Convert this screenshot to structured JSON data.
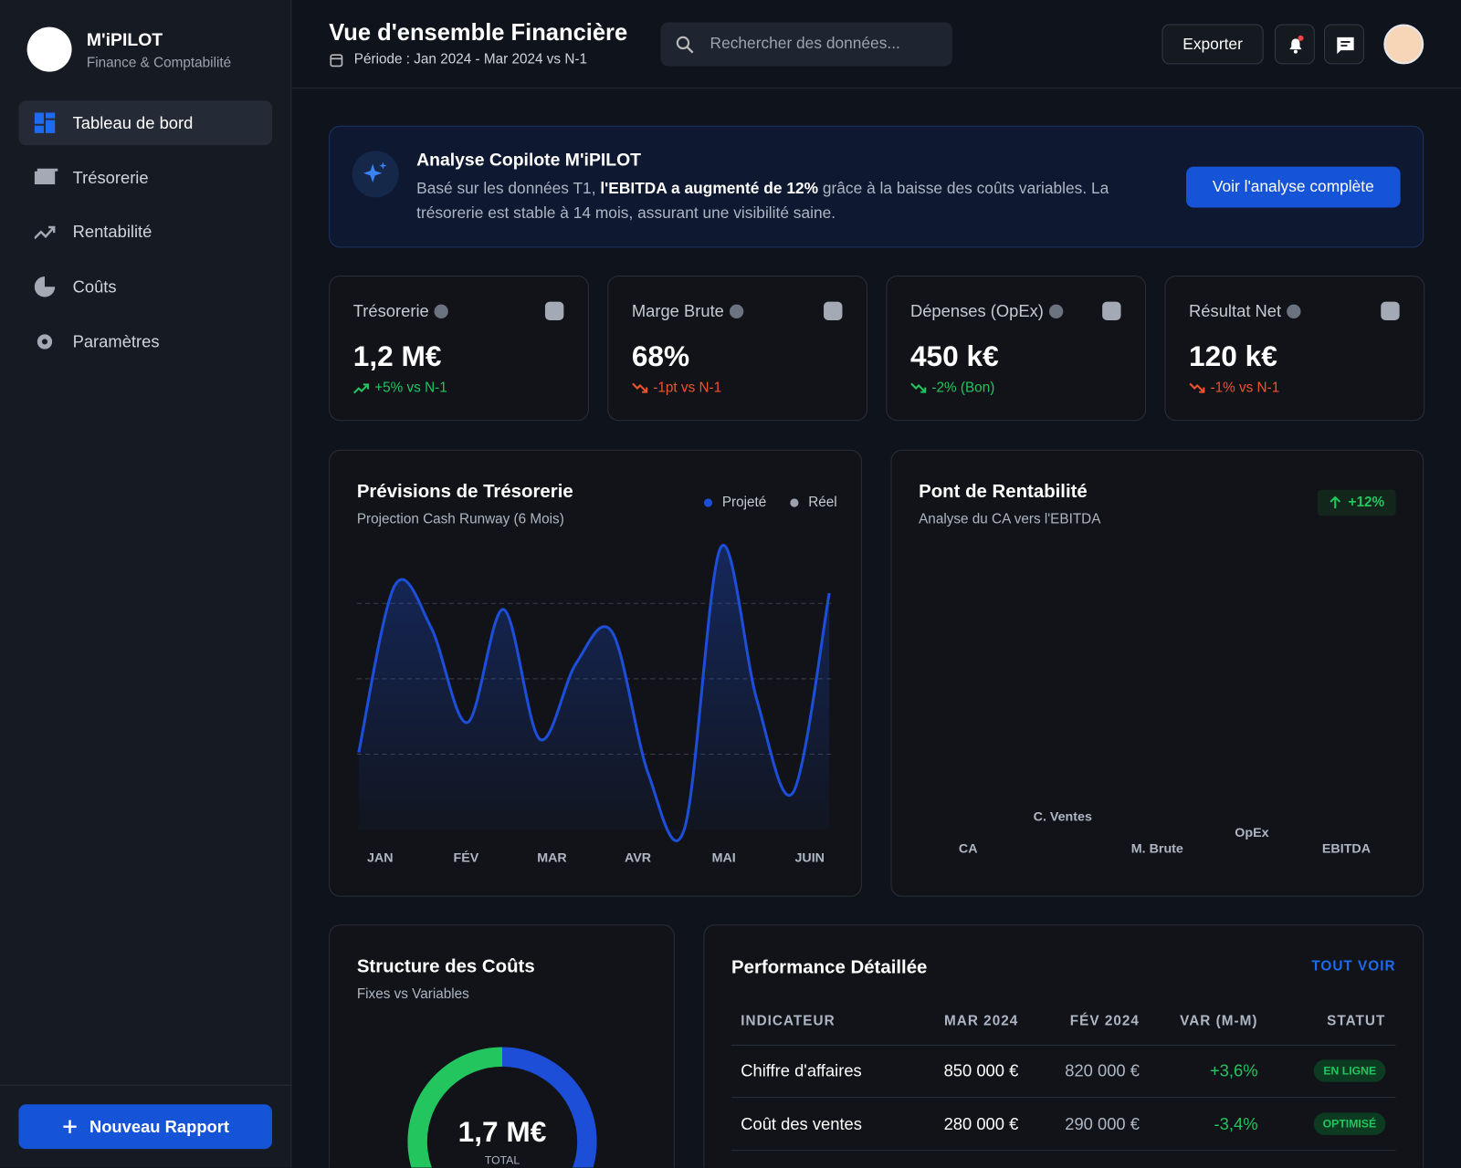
{
  "sidebar": {
    "brand": "M'iPILOT",
    "tagline": "Finance & Comptabilité",
    "nav": [
      "Tableau de bord",
      "Trésorerie",
      "Rentabilité",
      "Coûts",
      "Paramètres"
    ],
    "cta": "Nouveau Rapport"
  },
  "header": {
    "title": "Vue d'ensemble Financière",
    "period": "Période : Jan 2024 - Mar 2024 vs N-1",
    "search": "Rechercher des données...",
    "export": "Exporter"
  },
  "copilot": {
    "title": "Analyse Copilote M'iPILOT",
    "text_before": "Basé sur les données T1, ",
    "highlight": "l'EBITDA a augmenté de 12%",
    "text_after": " grâce à la baisse des coûts variables. La trésorerie est stable à 14 mois, assurant une visibilité saine.",
    "button": "Voir l'analyse complète"
  },
  "kpis": [
    {
      "label": "Trésorerie",
      "value": "1,2 M€",
      "delta": "+5% vs N-1",
      "trend": "up",
      "color": "#22c55e"
    },
    {
      "label": "Marge Brute",
      "value": "68%",
      "delta": "-1pt vs N-1",
      "trend": "down",
      "color": "#f0532d"
    },
    {
      "label": "Dépenses (OpEx)",
      "value": "450 k€",
      "delta": "-2% (Bon)",
      "trend": "down",
      "color": "#22c55e"
    },
    {
      "label": "Résultat Net",
      "value": "120 k€",
      "delta": "-1% vs N-1",
      "trend": "down",
      "color": "#f0532d"
    }
  ],
  "chart_data": [
    {
      "type": "line",
      "title": "Prévisions de Trésorerie",
      "subtitle": "Projection Cash Runway (6 Mois)",
      "legend": [
        {
          "name": "Projeté",
          "color": "#1d4ed8"
        },
        {
          "name": "Réel",
          "color": "#9ca3af"
        }
      ],
      "x_labels": [
        "JAN",
        "FÉV",
        "MAR",
        "AVR",
        "MAI",
        "JUIN"
      ],
      "values": [
        25.6,
        81,
        67,
        35.5,
        73,
        30,
        55,
        65.5,
        18.5,
        0.3,
        93.5,
        43,
        12.3,
        78.4
      ],
      "color": "#1d4ed8",
      "ylim": [
        0,
        100
      ],
      "yticks": [
        25,
        50,
        75
      ],
      "grid": true
    },
    {
      "type": "waterfall",
      "title": "Pont de Rentabilité",
      "subtitle": "Analyse du CA vers l'EBITDA",
      "badge": "+12%",
      "categories": [
        "CA",
        "C. Ventes",
        "M. Brute",
        "OpEx",
        "EBITDA"
      ]
    },
    {
      "type": "donut",
      "title": "Structure des Coûts",
      "subtitle": "Fixes vs Variables",
      "center_value": "1,7 M€",
      "center_label": "TOTAL",
      "values": [
        50,
        50
      ],
      "colors": [
        "#1d4ed8",
        "#22c55e"
      ]
    }
  ],
  "table": {
    "title": "Performance Détaillée",
    "link": "TOUT VOIR",
    "columns": [
      "INDICATEUR",
      "MAR 2024",
      "FÉV 2024",
      "VAR (M-M)",
      "STATUT"
    ],
    "rows": [
      [
        "Chiffre d'affaires",
        "850 000 €",
        "820 000 €",
        "+3,6%",
        "EN LIGNE"
      ],
      [
        "Coût des ventes",
        "280 000 €",
        "290 000 €",
        "-3,4%",
        "OPTIMISÉ"
      ]
    ]
  }
}
